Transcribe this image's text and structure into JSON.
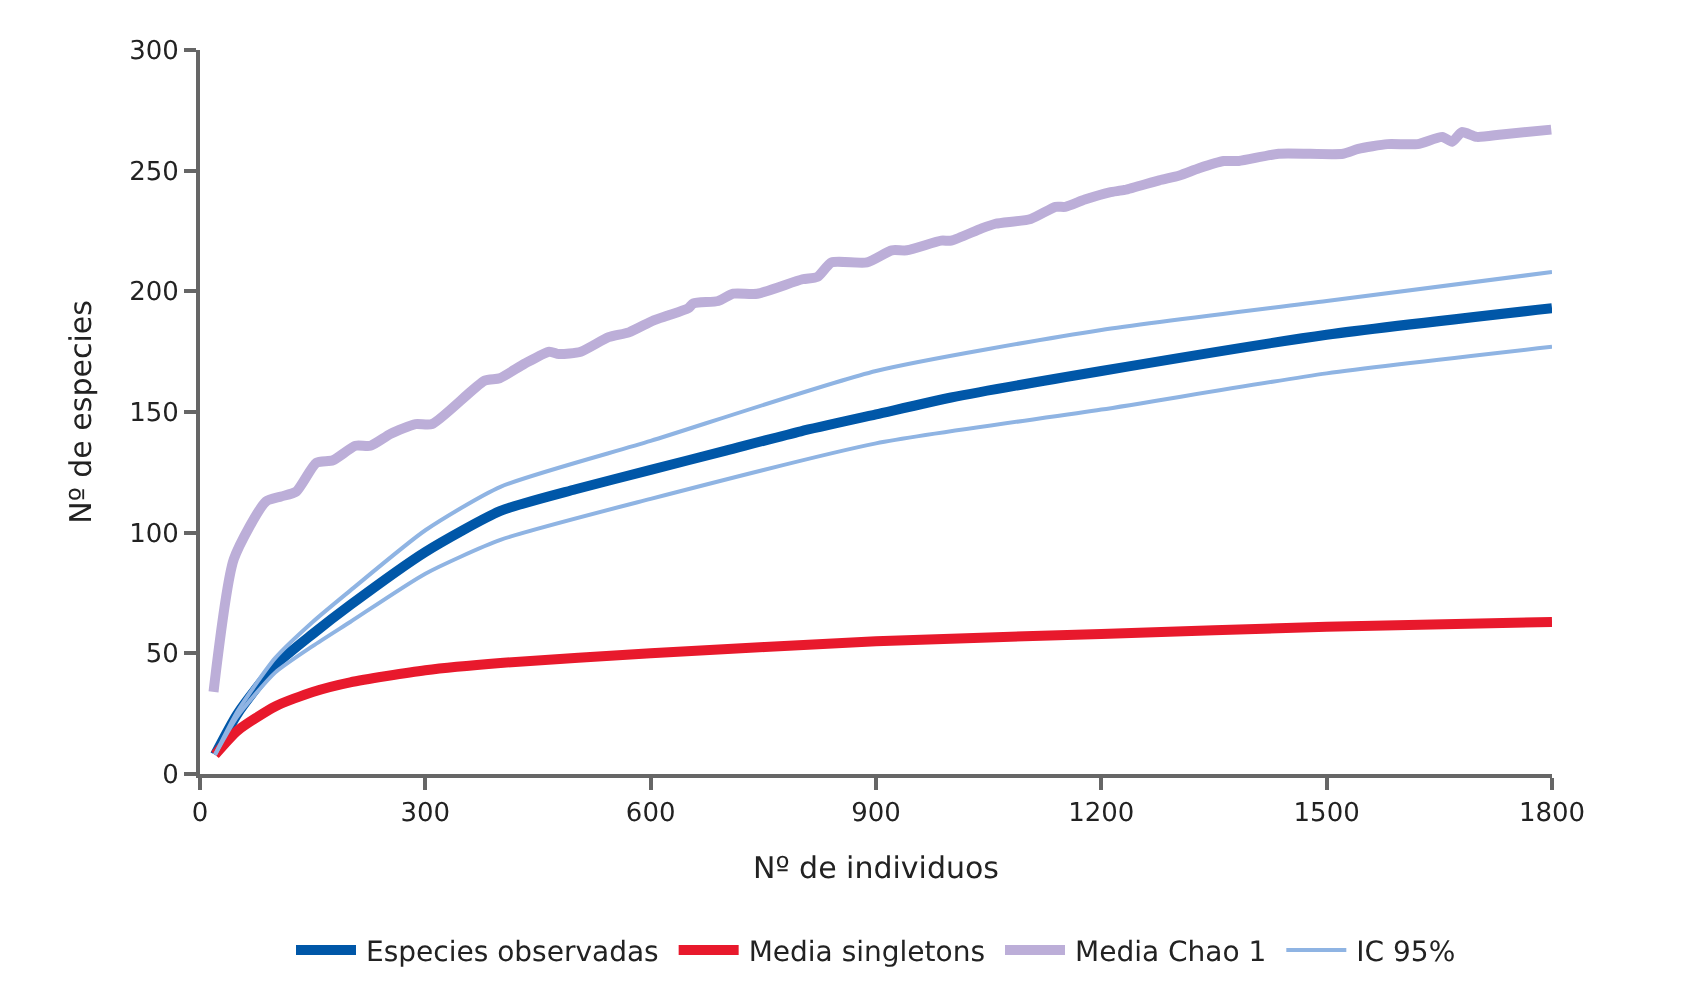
{
  "chart_data": {
    "type": "line",
    "xlabel": "Nº de individuos",
    "ylabel": "Nº de especies",
    "xlim": [
      0,
      1800
    ],
    "xticks": [
      0,
      300,
      600,
      900,
      1200,
      1500,
      1800
    ],
    "ylim": [
      0,
      300
    ],
    "yticks": [
      0,
      50,
      100,
      150,
      200,
      250,
      300
    ],
    "legend": "bottom",
    "marker": "none",
    "line_style": "solid",
    "series": [
      {
        "name": "Especies observadas",
        "color": "#0057a8",
        "x": [
          20,
          50,
          100,
          150,
          200,
          300,
          400,
          500,
          600,
          700,
          800,
          900,
          1000,
          1200,
          1500,
          1800
        ],
        "values": [
          8,
          25,
          45,
          58,
          70,
          92,
          109,
          118,
          126,
          134,
          142,
          149,
          156,
          167,
          182,
          193
        ]
      },
      {
        "name": "Media singletons",
        "color": "#e8192c",
        "x": [
          20,
          50,
          100,
          150,
          200,
          300,
          400,
          600,
          900,
          1200,
          1500,
          1800
        ],
        "values": [
          8,
          18,
          28,
          34,
          38,
          43,
          46,
          50,
          55,
          58,
          61,
          63
        ]
      },
      {
        "name": "Media Chao 1",
        "color": "#bcaed8",
        "x": [
          18,
          45,
          88,
          108,
          128,
          155,
          177,
          207,
          227,
          254,
          287,
          309,
          379,
          399,
          432,
          465,
          478,
          507,
          544,
          571,
          604,
          623,
          650,
          657,
          690,
          710,
          742,
          802,
          822,
          841,
          888,
          921,
          941,
          987,
          1000,
          1040,
          1059,
          1106,
          1139,
          1152,
          1178,
          1211,
          1231,
          1277,
          1304,
          1330,
          1363,
          1383,
          1436,
          1522,
          1542,
          1581,
          1621,
          1654,
          1667,
          1680,
          1700,
          1733,
          1799
        ],
        "values": [
          34,
          89,
          113,
          115,
          117,
          129,
          130,
          136,
          136,
          141,
          145,
          145,
          163,
          164,
          170,
          175,
          174,
          175,
          181,
          183,
          188,
          190,
          193,
          195,
          196,
          199,
          199,
          205,
          206,
          212,
          212,
          217,
          217,
          221,
          221,
          226,
          228,
          230,
          235,
          235,
          238,
          241,
          242,
          246,
          248,
          251,
          254,
          254,
          257,
          257,
          259,
          261,
          261,
          264,
          262,
          266,
          264,
          265,
          267
        ]
      },
      {
        "name": "IC 95%",
        "color": "#8fb4e3",
        "x": [
          20,
          50,
          100,
          150,
          200,
          300,
          400,
          600,
          900,
          1200,
          1500,
          1800
        ],
        "values": [
          8,
          26,
          48,
          63,
          76,
          101,
          119,
          138,
          167,
          184,
          196,
          208
        ]
      },
      {
        "color": "#8fb4e3",
        "x": [
          20,
          50,
          100,
          150,
          200,
          300,
          400,
          600,
          900,
          1200,
          1500,
          1800
        ],
        "values": [
          8,
          24,
          42,
          53,
          63,
          83,
          97,
          114,
          137,
          151,
          166,
          177
        ]
      }
    ]
  }
}
